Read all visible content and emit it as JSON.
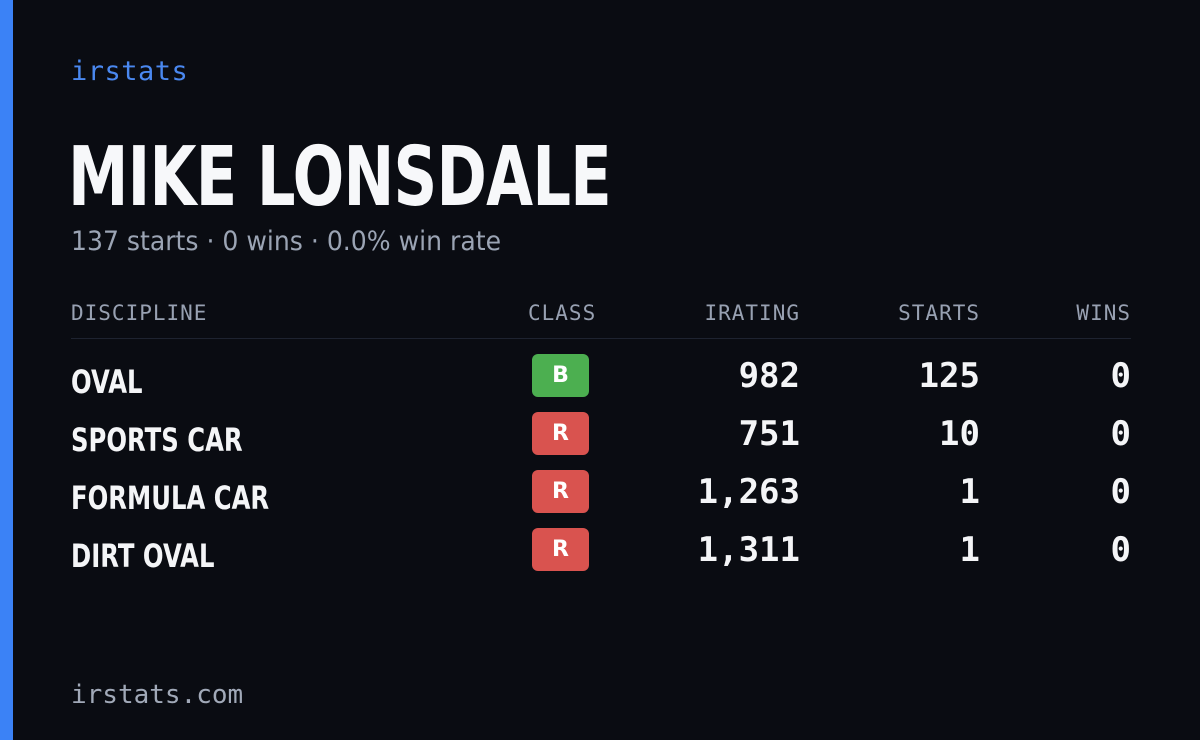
{
  "brand": "irstats",
  "driver": {
    "name": "MIKE LONSDALE",
    "summary": "137 starts · 0 wins · 0.0% win rate"
  },
  "table": {
    "headers": {
      "discipline": "DISCIPLINE",
      "class": "CLASS",
      "irating": "IRATING",
      "starts": "STARTS",
      "wins": "WINS"
    },
    "rows": [
      {
        "discipline": "OVAL",
        "class": "B",
        "class_color": "#4caf50",
        "irating": "982",
        "starts": "125",
        "wins": "0"
      },
      {
        "discipline": "SPORTS CAR",
        "class": "R",
        "class_color": "#d9534f",
        "irating": "751",
        "starts": "10",
        "wins": "0"
      },
      {
        "discipline": "FORMULA CAR",
        "class": "R",
        "class_color": "#d9534f",
        "irating": "1,263",
        "starts": "1",
        "wins": "0"
      },
      {
        "discipline": "DIRT OVAL",
        "class": "R",
        "class_color": "#d9534f",
        "irating": "1,311",
        "starts": "1",
        "wins": "0"
      }
    ]
  },
  "footer": "irstats.com",
  "colors": {
    "background": "#0a0c12",
    "accent": "#3b82f6",
    "class_b": "#4caf50",
    "class_r": "#d9534f"
  }
}
